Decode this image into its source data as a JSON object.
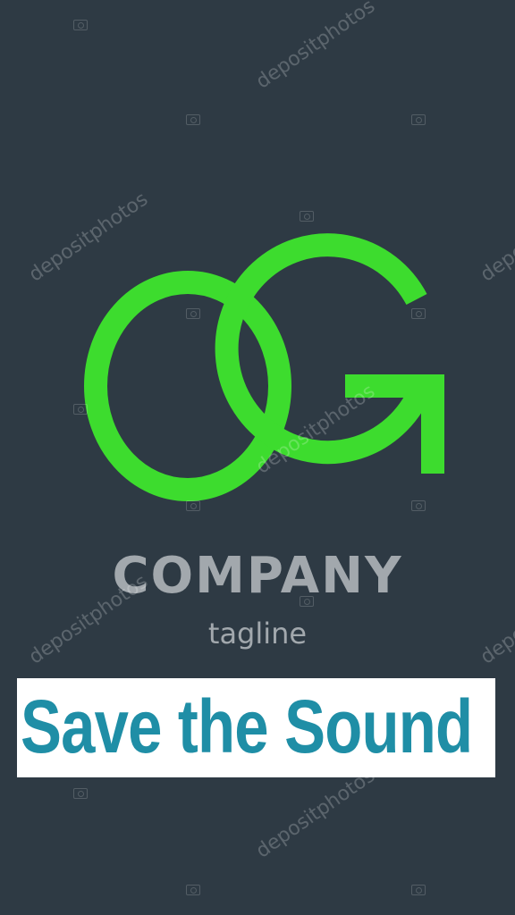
{
  "logo": {
    "monogram": "OG",
    "company": "COMPANY",
    "tagline": "tagline",
    "color": "#3ddc2e",
    "text_color": "#a2a8ad",
    "background": "#2e3a44"
  },
  "banner": {
    "text": "Save the Sound",
    "text_color": "#1f8ea6",
    "background": "#ffffff"
  },
  "watermark": {
    "text": "depositphotos",
    "icon": "camera-icon"
  }
}
